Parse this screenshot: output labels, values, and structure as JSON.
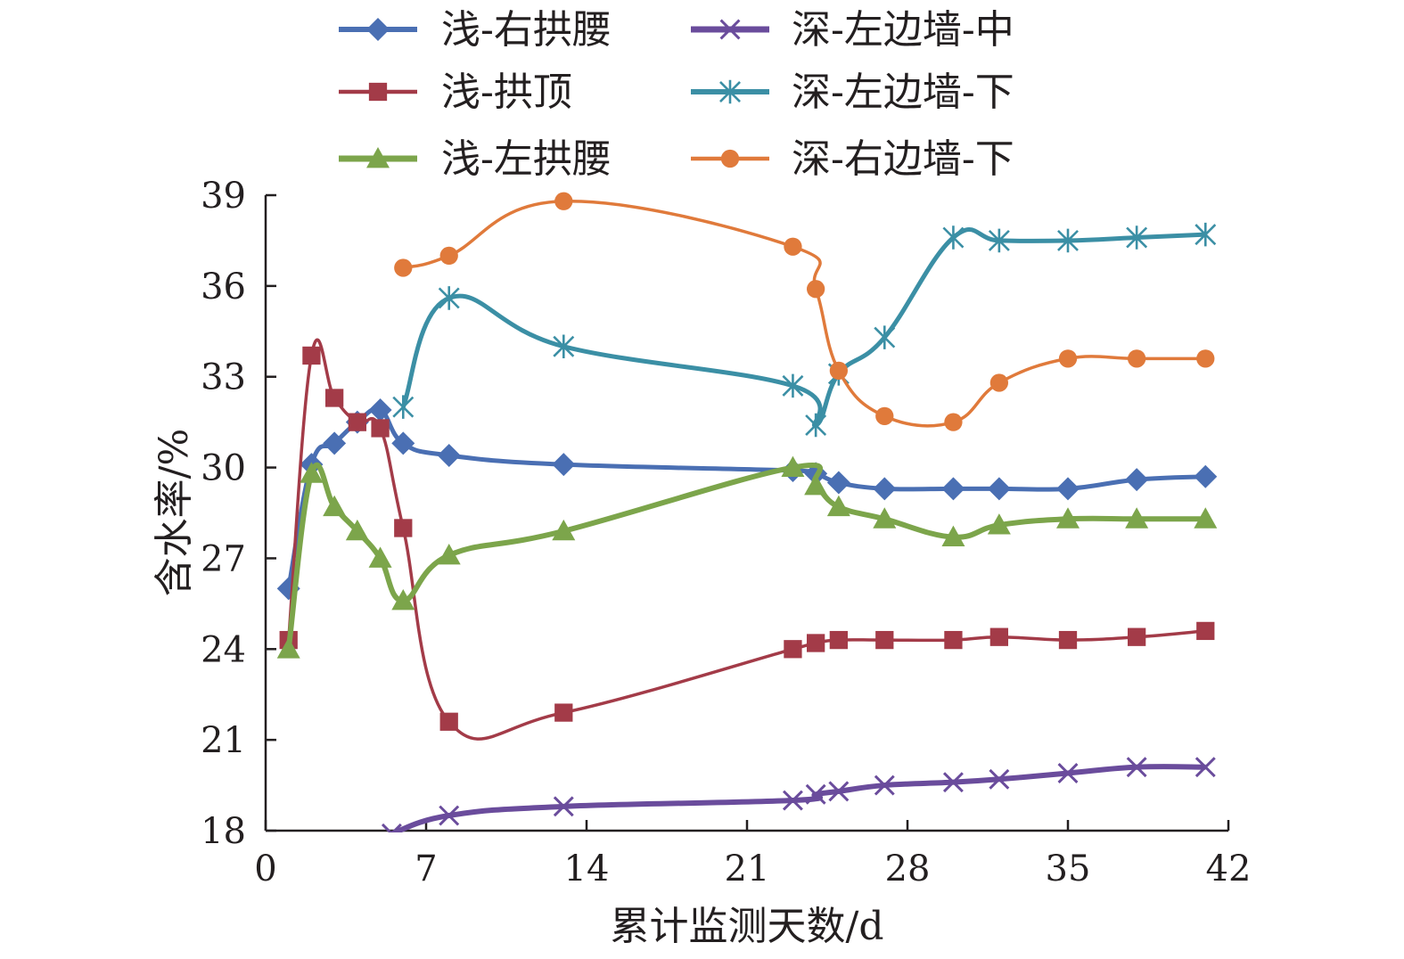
{
  "chart_data": {
    "type": "line",
    "title": "",
    "xlabel": "累计监测天数/d",
    "ylabel": "含水率/%",
    "xlim": [
      0,
      42
    ],
    "ylim": [
      18,
      39
    ],
    "xticks": [
      0,
      7,
      14,
      21,
      28,
      35,
      42
    ],
    "yticks": [
      18,
      21,
      24,
      27,
      30,
      33,
      36,
      39
    ],
    "grid": false,
    "legend": "top",
    "series": [
      {
        "name": "浅-右拱腰",
        "color": "#4a6fb3",
        "marker": "diamond",
        "x": [
          1,
          2,
          3,
          4,
          5,
          6,
          8,
          13,
          23,
          24,
          25,
          27,
          30,
          32,
          35,
          38,
          41
        ],
        "y": [
          26.0,
          30.1,
          30.8,
          31.5,
          31.9,
          30.8,
          30.4,
          30.1,
          29.9,
          29.8,
          29.5,
          29.3,
          29.3,
          29.3,
          29.3,
          29.6,
          29.7
        ]
      },
      {
        "name": "浅-拱顶",
        "color": "#a33b48",
        "marker": "square",
        "x": [
          1,
          2,
          3,
          4,
          5,
          6,
          8,
          13,
          23,
          24,
          25,
          27,
          30,
          32,
          35,
          38,
          41
        ],
        "y": [
          24.3,
          33.7,
          32.3,
          31.5,
          31.3,
          28.0,
          21.6,
          21.9,
          24.0,
          24.2,
          24.3,
          24.3,
          24.3,
          24.4,
          24.3,
          24.4,
          24.6
        ]
      },
      {
        "name": "浅-左拱腰",
        "color": "#7ca54b",
        "marker": "triangle",
        "x": [
          1,
          2,
          3,
          4,
          5,
          6,
          8,
          13,
          23,
          24,
          25,
          27,
          30,
          32,
          35,
          38,
          41
        ],
        "y": [
          24.0,
          29.8,
          28.7,
          27.9,
          27.0,
          25.6,
          27.1,
          27.9,
          30.0,
          29.4,
          28.7,
          28.3,
          27.7,
          28.1,
          28.3,
          28.3,
          28.3
        ]
      },
      {
        "name": "深-左边墙-中",
        "color": "#6a4c9c",
        "marker": "x",
        "x": [
          5.5,
          8,
          13,
          23,
          24,
          25,
          27,
          30,
          32,
          35,
          38,
          41
        ],
        "y": [
          17.9,
          18.5,
          18.8,
          19.0,
          19.2,
          19.3,
          19.5,
          19.6,
          19.7,
          19.9,
          20.1,
          20.1
        ]
      },
      {
        "name": "深-左边墙-下",
        "color": "#3b8fa5",
        "marker": "star",
        "x": [
          6,
          8,
          13,
          23,
          24,
          25,
          27,
          30,
          32,
          35,
          38,
          41
        ],
        "y": [
          32.0,
          35.6,
          34.0,
          32.7,
          31.4,
          33.1,
          34.3,
          37.6,
          37.5,
          37.5,
          37.6,
          37.7
        ]
      },
      {
        "name": "深-右边墙-下",
        "color": "#e07a3b",
        "marker": "circle",
        "x": [
          6,
          8,
          13,
          23,
          24,
          25,
          27,
          30,
          32,
          35,
          38,
          41
        ],
        "y": [
          36.6,
          37.0,
          38.8,
          37.3,
          35.9,
          33.2,
          31.7,
          31.5,
          32.8,
          33.6,
          33.6,
          33.6
        ]
      }
    ]
  }
}
